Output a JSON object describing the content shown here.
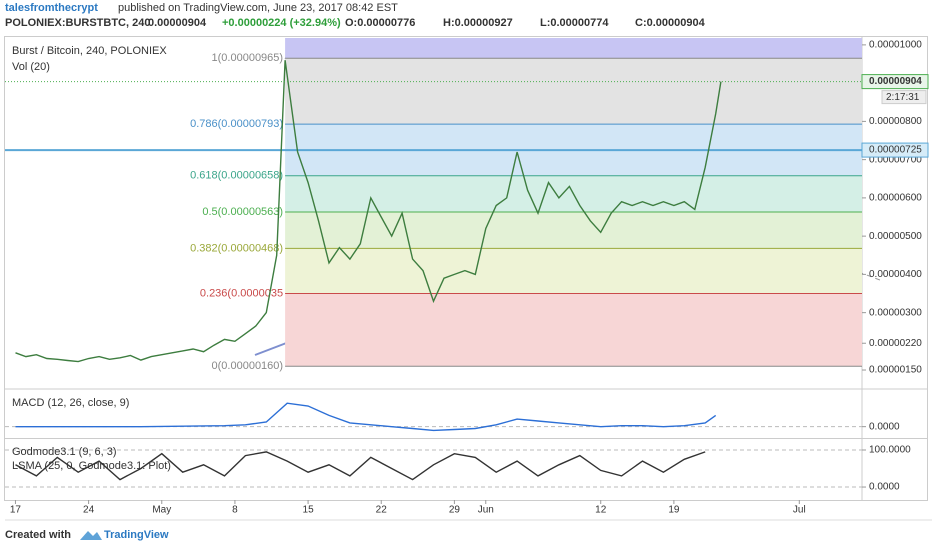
{
  "header": {
    "author": "talesfromthecrypt",
    "published": "published on TradingView.com, June 23, 2017 08:42 EST",
    "symbol": "POLONIEX:BURSTBTC, 240",
    "price": "0.00000904",
    "change": "+0.00000224 (+32.94%)",
    "open": "O:0.00000776",
    "high": "H:0.00000927",
    "low": "L:0.00000774",
    "close": "C:0.00000904"
  },
  "footer": {
    "created": "Created with",
    "brand": "TradingView"
  },
  "chart_data": [
    {
      "type": "line",
      "title": "Burst / Bitcoin, 240, POLONIEX",
      "subtitle": "Vol (20)",
      "color": "#3d7d3f",
      "x": [
        0,
        1,
        2,
        3,
        4,
        5,
        6,
        7,
        8,
        9,
        10,
        11,
        12,
        13,
        14,
        15,
        16,
        17,
        18,
        19,
        20,
        21,
        22,
        23,
        24,
        25,
        25.8,
        27,
        28,
        29,
        30,
        31,
        32,
        33,
        34,
        35,
        36,
        37,
        38,
        39,
        40,
        41,
        42,
        43,
        44,
        45,
        46,
        47,
        48,
        49,
        50,
        51,
        52,
        53,
        54,
        55,
        56,
        57,
        58,
        59,
        60,
        61,
        62,
        63,
        64,
        65,
        66,
        67,
        67.5
      ],
      "values": [
        1.95e-06,
        1.85e-06,
        1.9e-06,
        1.8e-06,
        1.78e-06,
        1.75e-06,
        1.72e-06,
        1.8e-06,
        1.85e-06,
        1.78e-06,
        1.82e-06,
        1.88e-06,
        1.76e-06,
        1.85e-06,
        1.9e-06,
        1.95e-06,
        2e-06,
        2.05e-06,
        1.98e-06,
        2.15e-06,
        2.3e-06,
        2.25e-06,
        2.45e-06,
        2.65e-06,
        3e-06,
        4.5e-06,
        9.6e-06,
        7.2e-06,
        6.4e-06,
        5.4e-06,
        4.3e-06,
        4.7e-06,
        4.4e-06,
        4.8e-06,
        6e-06,
        5.5e-06,
        5e-06,
        5.6e-06,
        4.4e-06,
        4.1e-06,
        3.3e-06,
        3.9e-06,
        4e-06,
        4.1e-06,
        4e-06,
        5.2e-06,
        5.8e-06,
        6e-06,
        7.2e-06,
        6.2e-06,
        5.6e-06,
        6.4e-06,
        6e-06,
        6.3e-06,
        5.8e-06,
        5.4e-06,
        5.1e-06,
        5.6e-06,
        5.9e-06,
        5.8e-06,
        5.9e-06,
        5.8e-06,
        5.9e-06,
        5.8e-06,
        5.9e-06,
        5.7e-06,
        6.8e-06,
        8.2e-06,
        9.04e-06
      ],
      "xlim": [
        -1,
        81
      ],
      "xticks": [
        {
          "value": 0,
          "label": "17"
        },
        {
          "value": 7,
          "label": "24"
        },
        {
          "value": 14,
          "label": "May"
        },
        {
          "value": 21,
          "label": "8"
        },
        {
          "value": 28,
          "label": "15"
        },
        {
          "value": 35,
          "label": "22"
        },
        {
          "value": 42,
          "label": "29"
        },
        {
          "value": 45,
          "label": "Jun"
        },
        {
          "value": 56,
          "label": "12"
        },
        {
          "value": 63,
          "label": "19"
        },
        {
          "value": 75,
          "label": "Jul"
        }
      ],
      "ylim": [
        1.03e-06,
        1.018e-05
      ],
      "yticks": [
        {
          "value": 1e-05,
          "label": "0.00001000"
        },
        {
          "value": 9e-06,
          "label": "0.00000900"
        },
        {
          "value": 8e-06,
          "label": "0.00000800"
        },
        {
          "value": 7e-06,
          "label": "0.00000700"
        },
        {
          "value": 6e-06,
          "label": "0.00000600"
        },
        {
          "value": 5e-06,
          "label": "0.00000500"
        },
        {
          "value": 4e-06,
          "label": "0.00000400"
        },
        {
          "value": 3e-06,
          "label": "0.00000300"
        },
        {
          "value": 2.2e-06,
          "label": "0.00000220"
        },
        {
          "value": 1.5e-06,
          "label": "0.00000150"
        }
      ],
      "grid": true,
      "last_price": {
        "value": 9.04e-06,
        "label": "0.00000904"
      },
      "countdown": "2:17:31",
      "hline": {
        "value": 7.25e-06,
        "label": "0.00000725",
        "color": "#5aa7d6"
      },
      "fib_levels": {
        "values": [
          9.65e-06,
          7.93e-06,
          6.58e-06,
          5.63e-06,
          4.68e-06,
          3.5e-06,
          1.6e-06
        ],
        "value_labels": [
          "1(0.00000965)",
          "0.786(0.00000793)",
          "0.618(0.00000658)",
          "0.5(0.00000563)",
          "0.382(0.00000468)",
          "0.236(0.0000035",
          "0(0.00000160)"
        ],
        "colors": [
          "#888888",
          "#4a90c8",
          "#3aa58a",
          "#4caf50",
          "#9aa83a",
          "#c94a4a",
          "#888888"
        ],
        "band_colors": [
          "#c7c5f3",
          "#e3e3e3",
          "#d2e6f6",
          "#d4efe6",
          "#e3f1d6",
          "#eef3d6",
          "#f7d6d6"
        ]
      }
    },
    {
      "type": "line",
      "title": "MACD (12, 26, close, 9)",
      "color": "#2c6fd6",
      "x": [
        0,
        4,
        8,
        12,
        16,
        20,
        22,
        24,
        26,
        28,
        30,
        32,
        34,
        36,
        38,
        40,
        42,
        44,
        46,
        48,
        50,
        52,
        54,
        56,
        58,
        60,
        62,
        64,
        66,
        67
      ],
      "values": [
        0,
        0,
        0,
        0,
        5e-08,
        1e-07,
        2e-07,
        5e-07,
        2.5e-06,
        2.2e-06,
        1.2e-06,
        4e-07,
        2e-07,
        0,
        -2e-07,
        -4e-07,
        -3e-07,
        -2e-07,
        2e-07,
        8e-07,
        6e-07,
        4e-07,
        2e-07,
        0,
        1e-07,
        1e-07,
        0,
        1e-07,
        4e-07,
        1.2e-06
      ],
      "ylim": [
        -1.1e-06,
        3.9e-06
      ],
      "yticks": [
        {
          "value": 0,
          "label": "0.0000"
        }
      ]
    },
    {
      "type": "line",
      "title": "Godmode3.1 (9, 6, 3)",
      "subtitle": "LSMA (25, 0, Godmode3.1: Plot)",
      "color": "#333333",
      "x": [
        0,
        2,
        4,
        6,
        8,
        10,
        12,
        14,
        16,
        18,
        20,
        22,
        24,
        26,
        28,
        30,
        32,
        34,
        36,
        38,
        40,
        42,
        44,
        46,
        48,
        50,
        52,
        54,
        56,
        58,
        60,
        62,
        64,
        66
      ],
      "values": [
        60,
        30,
        80,
        40,
        70,
        20,
        50,
        90,
        40,
        60,
        30,
        85,
        95,
        70,
        40,
        60,
        30,
        80,
        50,
        20,
        60,
        90,
        80,
        40,
        70,
        30,
        60,
        85,
        45,
        30,
        70,
        40,
        75,
        95
      ],
      "ylim": [
        -35,
        127
      ],
      "yticks": [
        {
          "value": 100,
          "label": "100.0000"
        },
        {
          "value": 0,
          "label": "0.0000"
        }
      ]
    }
  ]
}
